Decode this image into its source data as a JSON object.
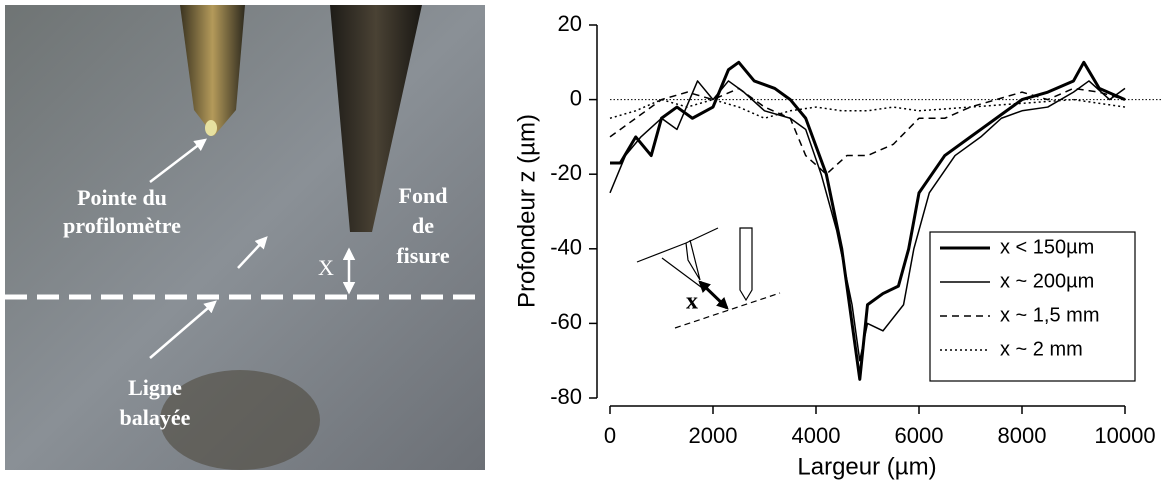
{
  "photo": {
    "tip_label": [
      "Pointe du",
      "profilomètre"
    ],
    "bottom_label": [
      "Fond",
      "de",
      "fisure"
    ],
    "distance_label": "X",
    "line_label": [
      "Ligne",
      "balayée"
    ]
  },
  "chart_data": {
    "type": "line",
    "x_label": "Largeur (µm)",
    "y_label": "Profondeur z (µm)",
    "inset_label": "x",
    "xlim": [
      0,
      10000
    ],
    "xticks": [
      0,
      2000,
      4000,
      6000,
      8000,
      10000
    ],
    "ylim": [
      -80,
      20
    ],
    "yticks": [
      20,
      0,
      -20,
      -40,
      -60,
      -80
    ],
    "zero_line": true,
    "legend": "lower right",
    "series": [
      {
        "name": "x < 150µm",
        "color": "#000",
        "style": "solid",
        "width": 3,
        "x": [
          0,
          200,
          500,
          800,
          1000,
          1300,
          1600,
          2000,
          2300,
          2500,
          2800,
          3200,
          3500,
          3800,
          4200,
          4500,
          4700,
          4850,
          5000,
          5300,
          5600,
          5800,
          6000,
          6500,
          7000,
          7500,
          8000,
          8500,
          9000,
          9200,
          9500,
          10000
        ],
        "values": [
          -17,
          -17,
          -10,
          -15,
          -5,
          -2,
          -5,
          -2,
          8,
          10,
          5,
          3,
          0,
          -5,
          -20,
          -40,
          -60,
          -75,
          -55,
          -52,
          -50,
          -40,
          -25,
          -15,
          -10,
          -5,
          0,
          2,
          5,
          10,
          3,
          0
        ]
      },
      {
        "name": "x ~ 200µm",
        "color": "#000",
        "style": "solid",
        "width": 1.5,
        "x": [
          0,
          300,
          600,
          1000,
          1300,
          1700,
          2000,
          2300,
          2600,
          3000,
          3500,
          3800,
          4100,
          4400,
          4700,
          4850,
          5000,
          5300,
          5700,
          5900,
          6200,
          6700,
          7200,
          7600,
          8000,
          8500,
          9000,
          9300,
          9700,
          10000
        ],
        "values": [
          -25,
          -15,
          -10,
          -5,
          -8,
          5,
          0,
          5,
          2,
          -3,
          -5,
          -8,
          -20,
          -35,
          -55,
          -70,
          -60,
          -62,
          -55,
          -40,
          -25,
          -15,
          -10,
          -5,
          -3,
          -2,
          2,
          5,
          0,
          3
        ]
      },
      {
        "name": "x ~ 1,5 mm",
        "color": "#000",
        "style": "dashed",
        "width": 1.5,
        "x": [
          0,
          500,
          1000,
          1500,
          2000,
          2500,
          3000,
          3500,
          3800,
          4200,
          4600,
          5000,
          5500,
          6000,
          6500,
          7000,
          7500,
          8000,
          8500,
          9000,
          9500,
          10000
        ],
        "values": [
          -10,
          -5,
          0,
          2,
          0,
          3,
          -2,
          -5,
          -15,
          -20,
          -15,
          -15,
          -12,
          -5,
          -5,
          -2,
          0,
          2,
          0,
          3,
          2,
          0
        ]
      },
      {
        "name": "x ~ 2 mm",
        "color": "#000",
        "style": "dotted",
        "width": 1.5,
        "x": [
          0,
          500,
          1000,
          1500,
          2000,
          2500,
          3000,
          3500,
          4000,
          4500,
          5000,
          5500,
          6000,
          7000,
          8000,
          9000,
          10000
        ],
        "values": [
          -5,
          -3,
          0,
          -2,
          0,
          -2,
          -5,
          -3,
          -2,
          -3,
          -3,
          -2,
          -3,
          -2,
          -1,
          0,
          -2
        ]
      }
    ]
  }
}
